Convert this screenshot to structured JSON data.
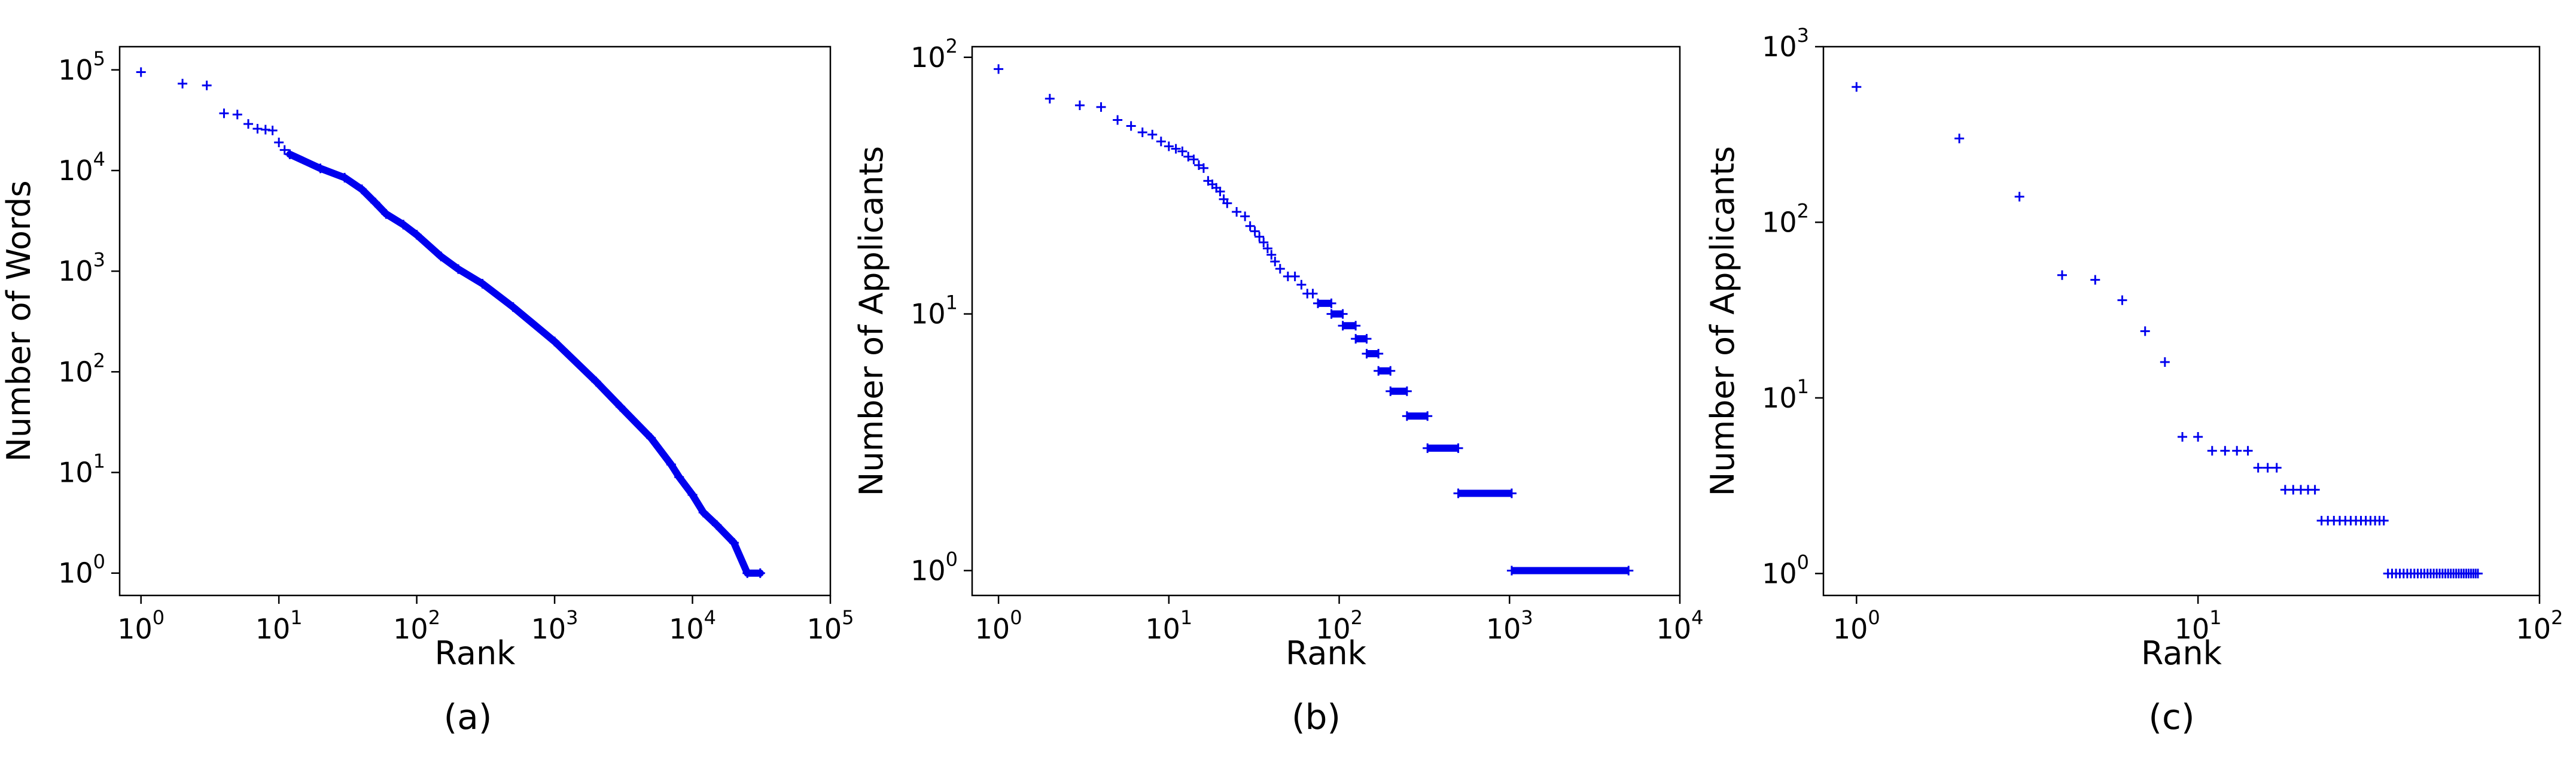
{
  "chart_data": [
    {
      "type": "scatter",
      "caption": "(a)",
      "xlabel": "Rank",
      "ylabel": "Number of Words",
      "xscale": "log",
      "yscale": "log",
      "xlim": [
        0.7,
        100000
      ],
      "ylim": [
        0.6,
        170000
      ],
      "xtick_exponents": [
        0,
        1,
        2,
        3,
        4,
        5
      ],
      "ytick_exponents": [
        0,
        1,
        2,
        3,
        4,
        5
      ],
      "tick_base": "10",
      "marker": "+",
      "color": "#0000ee",
      "grid": false,
      "points": [
        [
          1,
          95000
        ],
        [
          2,
          73000
        ],
        [
          3,
          70000
        ],
        [
          4,
          37000
        ],
        [
          5,
          36000
        ],
        [
          6,
          29000
        ],
        [
          7,
          26000
        ],
        [
          8,
          25500
        ],
        [
          9,
          25000
        ],
        [
          10,
          19000
        ],
        [
          11,
          16000
        ],
        [
          12,
          14500
        ]
      ],
      "curve": [
        [
          12,
          14500
        ],
        [
          20,
          10500
        ],
        [
          30,
          8500
        ],
        [
          40,
          6500
        ],
        [
          50,
          4800
        ],
        [
          60,
          3700
        ],
        [
          80,
          2900
        ],
        [
          100,
          2300
        ],
        [
          150,
          1400
        ],
        [
          200,
          1050
        ],
        [
          300,
          750
        ],
        [
          500,
          440
        ],
        [
          1000,
          200
        ],
        [
          2000,
          80
        ],
        [
          3000,
          45
        ],
        [
          5000,
          22
        ],
        [
          7000,
          12
        ],
        [
          8000,
          9
        ],
        [
          10000,
          6
        ],
        [
          12000,
          4
        ],
        [
          15000,
          3
        ],
        [
          20000,
          2
        ],
        [
          25000,
          1
        ],
        [
          31000,
          1
        ]
      ]
    },
    {
      "type": "scatter",
      "caption": "(b)",
      "xlabel": "Rank",
      "ylabel": "Number of Applicants",
      "xscale": "log",
      "yscale": "log",
      "xlim": [
        0.7,
        10000
      ],
      "ylim": [
        0.8,
        110
      ],
      "xtick_exponents": [
        0,
        1,
        2,
        3,
        4
      ],
      "ytick_exponents": [
        0,
        1,
        2
      ],
      "tick_base": "10",
      "marker": "+",
      "color": "#0000ee",
      "grid": false,
      "points": [
        [
          1,
          90
        ],
        [
          2,
          69
        ],
        [
          3,
          65
        ],
        [
          4,
          64
        ],
        [
          5,
          57
        ],
        [
          6,
          54
        ],
        [
          7,
          51
        ],
        [
          8,
          50
        ],
        [
          9,
          47
        ],
        [
          10,
          45
        ],
        [
          11,
          44
        ],
        [
          12,
          43
        ],
        [
          13,
          41
        ],
        [
          14,
          40
        ],
        [
          15,
          38
        ],
        [
          16,
          37
        ],
        [
          17,
          33
        ],
        [
          18,
          32
        ],
        [
          19,
          31
        ],
        [
          20,
          30
        ],
        [
          21,
          28
        ],
        [
          22,
          27
        ],
        [
          25,
          25
        ],
        [
          28,
          24
        ],
        [
          30,
          22
        ],
        [
          32,
          21
        ],
        [
          34,
          20
        ],
        [
          36,
          19
        ],
        [
          38,
          18
        ],
        [
          40,
          17
        ],
        [
          42,
          16
        ],
        [
          45,
          15
        ],
        [
          50,
          14
        ],
        [
          55,
          14
        ],
        [
          60,
          13
        ],
        [
          65,
          12
        ],
        [
          70,
          12
        ]
      ],
      "steps": [
        [
          75,
          90,
          11
        ],
        [
          90,
          105,
          10
        ],
        [
          105,
          125,
          9
        ],
        [
          125,
          145,
          8
        ],
        [
          145,
          170,
          7
        ],
        [
          170,
          200,
          6
        ],
        [
          200,
          250,
          5
        ],
        [
          250,
          330,
          4
        ],
        [
          330,
          500,
          3
        ],
        [
          500,
          1030,
          2
        ],
        [
          1030,
          5000,
          1
        ]
      ]
    },
    {
      "type": "scatter",
      "caption": "(c)",
      "xlabel": "Rank",
      "ylabel": "Number of Applicants",
      "xscale": "log",
      "yscale": "log",
      "xlim": [
        0.8,
        100
      ],
      "ylim": [
        0.75,
        1000
      ],
      "xtick_exponents": [
        0,
        1,
        2
      ],
      "ytick_exponents": [
        0,
        1,
        2,
        3
      ],
      "tick_base": "10",
      "marker": "+",
      "color": "#0000ee",
      "grid": false,
      "points": [
        [
          1,
          590
        ],
        [
          2,
          300
        ],
        [
          3,
          140
        ],
        [
          4,
          50
        ],
        [
          5,
          47
        ],
        [
          6,
          36
        ],
        [
          7,
          24
        ],
        [
          8,
          16
        ],
        [
          9,
          6
        ],
        [
          10,
          6
        ],
        [
          11,
          5
        ],
        [
          12,
          5
        ],
        [
          13,
          5
        ],
        [
          14,
          5
        ],
        [
          15,
          4
        ],
        [
          16,
          4
        ],
        [
          17,
          4
        ],
        [
          18,
          3
        ],
        [
          19,
          3
        ],
        [
          20,
          3
        ],
        [
          21,
          3
        ],
        [
          22,
          3
        ],
        [
          23,
          2
        ],
        [
          24,
          2
        ],
        [
          25,
          2
        ],
        [
          26,
          2
        ],
        [
          27,
          2
        ],
        [
          28,
          2
        ],
        [
          29,
          2
        ],
        [
          30,
          2
        ],
        [
          31,
          2
        ],
        [
          32,
          2
        ],
        [
          33,
          2
        ],
        [
          34,
          2
        ],
        [
          35,
          2
        ],
        [
          36,
          1
        ],
        [
          37,
          1
        ],
        [
          38,
          1
        ],
        [
          39,
          1
        ],
        [
          40,
          1
        ],
        [
          41,
          1
        ],
        [
          42,
          1
        ],
        [
          43,
          1
        ],
        [
          44,
          1
        ],
        [
          45,
          1
        ],
        [
          46,
          1
        ],
        [
          47,
          1
        ],
        [
          48,
          1
        ],
        [
          49,
          1
        ],
        [
          50,
          1
        ],
        [
          51,
          1
        ],
        [
          52,
          1
        ],
        [
          53,
          1
        ],
        [
          54,
          1
        ],
        [
          55,
          1
        ],
        [
          56,
          1
        ],
        [
          57,
          1
        ],
        [
          58,
          1
        ],
        [
          59,
          1
        ],
        [
          60,
          1
        ],
        [
          61,
          1
        ],
        [
          62,
          1
        ],
        [
          63,
          1
        ],
        [
          64,
          1
        ],
        [
          65,
          1
        ],
        [
          66,
          1
        ]
      ]
    }
  ]
}
